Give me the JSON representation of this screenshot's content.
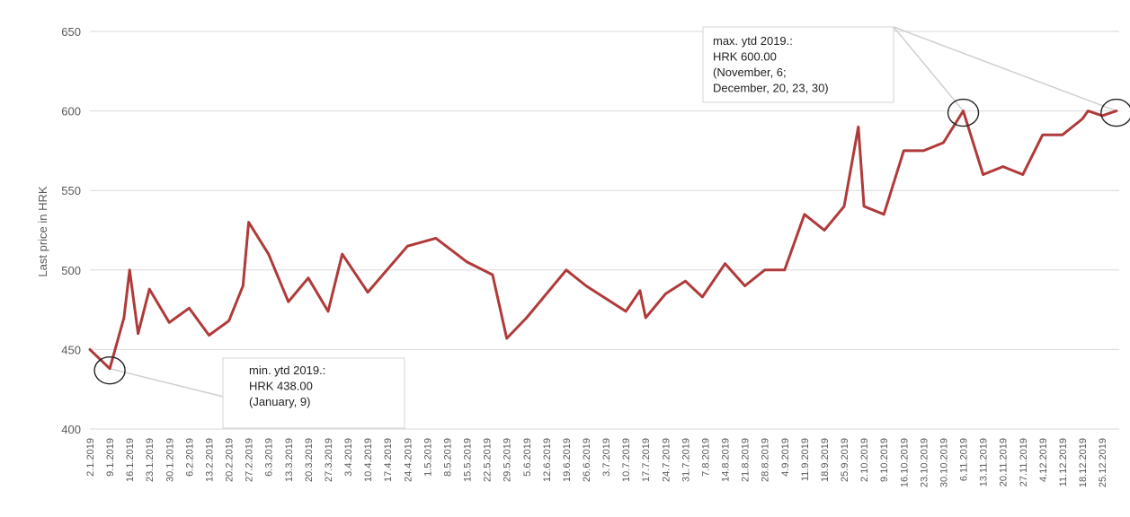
{
  "chart_data": {
    "type": "line",
    "ylabel": "Last price in HRK",
    "xlabel": "",
    "ylim": [
      400,
      650
    ],
    "yticks": [
      400,
      450,
      500,
      550,
      600,
      650
    ],
    "grid": "horizontal",
    "series": [
      {
        "color": "#b03a3a",
        "points": [
          [
            "2.1.2019",
            450
          ],
          [
            "9.1.2019",
            438
          ],
          [
            "14.1.2019",
            470
          ],
          [
            "16.1.2019",
            500
          ],
          [
            "19.1.2019",
            460
          ],
          [
            "23.1.2019",
            488
          ],
          [
            "30.1.2019",
            467
          ],
          [
            "6.2.2019",
            476
          ],
          [
            "13.2.2019",
            459
          ],
          [
            "20.2.2019",
            468
          ],
          [
            "25.2.2019",
            490
          ],
          [
            "27.2.2019",
            530
          ],
          [
            "6.3.2019",
            510
          ],
          [
            "13.3.2019",
            480
          ],
          [
            "20.3.2019",
            495
          ],
          [
            "27.3.2019",
            474
          ],
          [
            "1.4.2019",
            510
          ],
          [
            "10.4.2019",
            486
          ],
          [
            "24.4.2019",
            515
          ],
          [
            "4.5.2019",
            520
          ],
          [
            "15.5.2019",
            505
          ],
          [
            "24.5.2019",
            497
          ],
          [
            "29.5.2019",
            457
          ],
          [
            "5.6.2019",
            470
          ],
          [
            "19.6.2019",
            500
          ],
          [
            "26.6.2019",
            490
          ],
          [
            "10.7.2019",
            474
          ],
          [
            "15.7.2019",
            487
          ],
          [
            "17.7.2019",
            470
          ],
          [
            "24.7.2019",
            485
          ],
          [
            "31.7.2019",
            493
          ],
          [
            "6.8.2019",
            483
          ],
          [
            "14.8.2019",
            504
          ],
          [
            "21.8.2019",
            490
          ],
          [
            "28.8.2019",
            500
          ],
          [
            "4.9.2019",
            500
          ],
          [
            "11.9.2019",
            535
          ],
          [
            "18.9.2019",
            525
          ],
          [
            "25.9.2019",
            540
          ],
          [
            "30.9.2019",
            590
          ],
          [
            "2.10.2019",
            540
          ],
          [
            "9.10.2019",
            535
          ],
          [
            "16.10.2019",
            575
          ],
          [
            "23.10.2019",
            575
          ],
          [
            "30.10.2019",
            580
          ],
          [
            "6.11.2019",
            600
          ],
          [
            "13.11.2019",
            560
          ],
          [
            "20.11.2019",
            565
          ],
          [
            "27.11.2019",
            560
          ],
          [
            "4.12.2019",
            585
          ],
          [
            "11.12.2019",
            585
          ],
          [
            "18.12.2019",
            595
          ],
          [
            "20.12.2019",
            600
          ],
          [
            "25.12.2019",
            597
          ],
          [
            "30.12.2019",
            600
          ]
        ]
      }
    ],
    "x_tick_labels": [
      "2.1.2019",
      "9.1.2019",
      "16.1.2019",
      "23.1.2019",
      "30.1.2019",
      "6.2.2019",
      "13.2.2019",
      "20.2.2019",
      "27.2.2019",
      "6.3.2019",
      "13.3.2019",
      "20.3.2019",
      "27.3.2019",
      "3.4.2019",
      "10.4.2019",
      "17.4.2019",
      "24.4.2019",
      "1.5.2019",
      "8.5.2019",
      "15.5.2019",
      "22.5.2019",
      "29.5.2019",
      "5.6.2019",
      "12.6.2019",
      "19.6.2019",
      "26.6.2019",
      "3.7.2019",
      "10.7.2019",
      "17.7.2019",
      "24.7.2019",
      "31.7.2019",
      "7.8.2019",
      "14.8.2019",
      "21.8.2019",
      "28.8.2019",
      "4.9.2019",
      "11.9.2019",
      "18.9.2019",
      "25.9.2019",
      "2.10.2019",
      "9.10.2019",
      "16.10.2019",
      "23.10.2019",
      "30.10.2019",
      "6.11.2019",
      "13.11.2019",
      "20.11.2019",
      "27.11.2019",
      "4.12.2019",
      "11.12.2019",
      "18.12.2019",
      "25.12.2019"
    ],
    "annotations": [
      {
        "lines": [
          "max. ytd 2019.:",
          "HRK 600.00",
          "(November, 6;",
          "December, 20, 23, 30)"
        ],
        "targets": [
          [
            "6.11.2019",
            600
          ],
          [
            "30.12.2019",
            600
          ]
        ]
      },
      {
        "lines": [
          "min. ytd 2019.:",
          "HRK 438.00",
          "(January, 9)"
        ],
        "targets": [
          [
            "9.1.2019",
            438
          ]
        ]
      }
    ]
  }
}
